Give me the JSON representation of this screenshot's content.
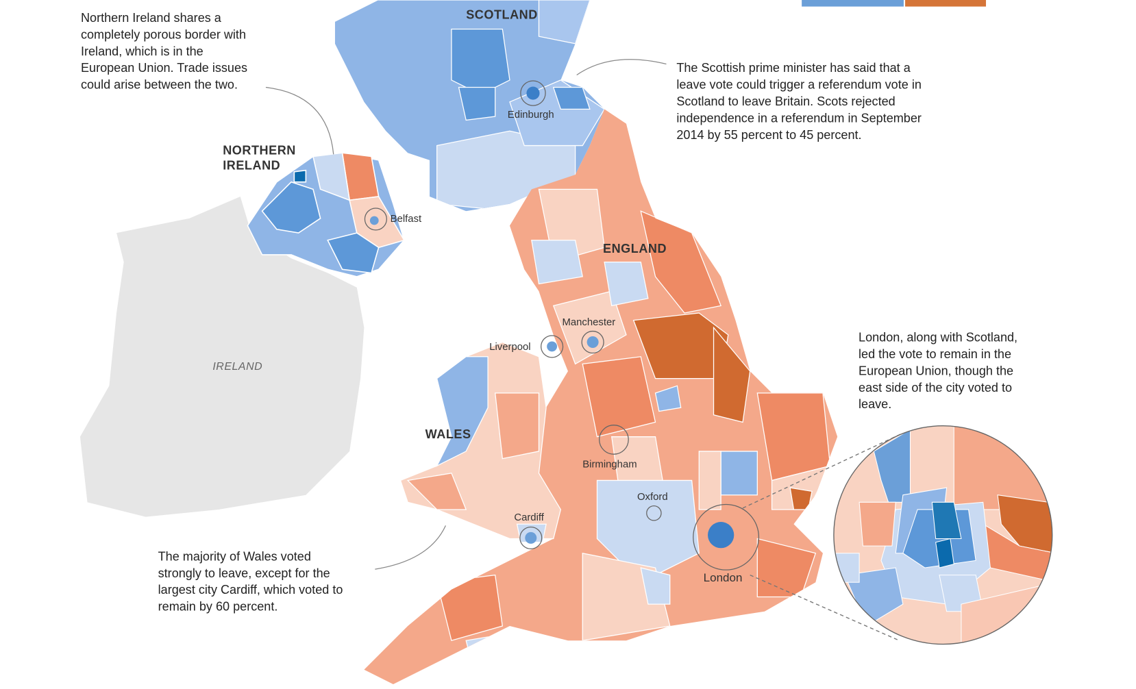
{
  "colors": {
    "ireland_land": "#e6e6e6",
    "remain_strong": "#0b6aad",
    "remain_medium": "#5d98d8",
    "remain_light": "#8fb5e6",
    "remain_faint": "#c9daf2",
    "leave_faint": "#f9d3c2",
    "leave_light": "#f4a88a",
    "leave_medium": "#ee8a64",
    "leave_strong": "#d06a30",
    "legend_remain": "#6b9fd8",
    "legend_leave": "#d57538"
  },
  "regions": {
    "scotland": "SCOTLAND",
    "northern_ireland_line1": "NORTHERN",
    "northern_ireland_line2": "IRELAND",
    "england": "ENGLAND",
    "wales": "WALES",
    "ireland": "IRELAND"
  },
  "cities": {
    "edinburgh": "Edinburgh",
    "belfast": "Belfast",
    "manchester": "Manchester",
    "liverpool": "Liverpool",
    "birmingham": "Birmingham",
    "oxford": "Oxford",
    "cardiff": "Cardiff",
    "london": "London"
  },
  "annotations": {
    "northern_ireland": [
      "Northern Ireland shares a",
      "completely porous border with",
      "Ireland, which is in the",
      "European Union. Trade issues",
      "could arise between the two."
    ],
    "scotland": [
      "The Scottish prime minister has said that a",
      "leave vote could trigger a referendum vote in",
      "Scotland to leave Britain. Scots rejected",
      "independence in a referendum in September",
      "2014 by 55 percent to 45 percent."
    ],
    "london": [
      "London, along with Scotland,",
      "led the vote to remain in the",
      "European Union, though the",
      "east side of the city voted to",
      "leave."
    ],
    "wales": [
      "The majority of Wales voted",
      "strongly to leave, except for the",
      "largest city Cardiff, which voted to",
      "remain by 60 percent."
    ]
  }
}
